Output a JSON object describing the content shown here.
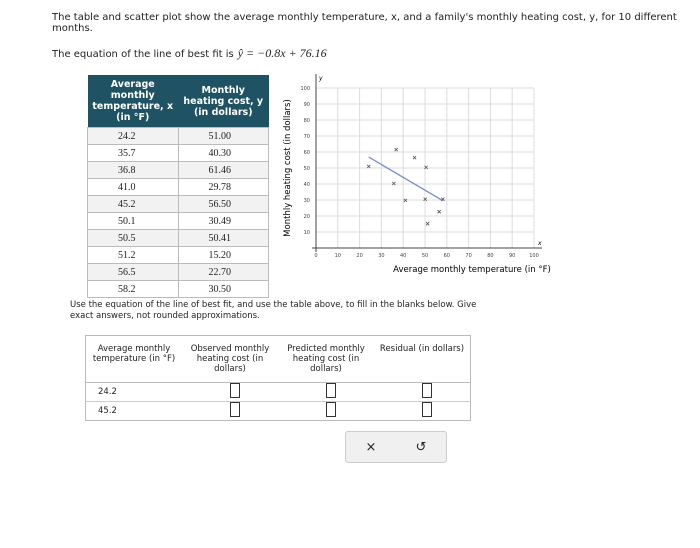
{
  "intro": "The table and scatter plot show the average monthly temperature, x, and a family's monthly heating cost, y, for 10 different months.",
  "equation_text": "The equation of the line of best fit is",
  "equation": "ŷ = −0.8x + 76.16",
  "data_table": {
    "headers": [
      "Average monthly temperature, x (in °F)",
      "Monthly heating cost, y (in dollars)"
    ],
    "rows": [
      [
        "24.2",
        "51.00"
      ],
      [
        "35.7",
        "40.30"
      ],
      [
        "36.8",
        "61.46"
      ],
      [
        "41.0",
        "29.78"
      ],
      [
        "45.2",
        "56.50"
      ],
      [
        "50.1",
        "30.49"
      ],
      [
        "50.5",
        "50.41"
      ],
      [
        "51.2",
        "15.20"
      ],
      [
        "56.5",
        "22.70"
      ],
      [
        "58.2",
        "30.50"
      ]
    ]
  },
  "scatter": {
    "x_label": "Average monthly temperature (in °F)",
    "y_label": "Monthly heating cost (in dollars)",
    "x_axis_arrow": "x",
    "y_axis_arrow": "y",
    "xlim": [
      0,
      100
    ],
    "ylim": [
      0,
      100
    ],
    "xticks": [
      0,
      10,
      20,
      30,
      40,
      50,
      60,
      70,
      80,
      90,
      100
    ],
    "yticks": [
      10,
      20,
      30,
      40,
      50,
      60,
      70,
      80,
      90,
      100
    ],
    "fit_line": {
      "slope": -0.8,
      "intercept": 76.16
    },
    "point_color": "#555555",
    "line_color": "#7b8fc7",
    "grid": true
  },
  "instructions": "Use the equation of the line of best fit, and use the table above, to fill in the blanks below. Give exact answers, not rounded approximations.",
  "answer_table": {
    "headers": [
      "Average monthly temperature (in °F)",
      "Observed monthly heating cost (in dollars)",
      "Predicted monthly heating cost (in dollars)",
      "Residual (in dollars)"
    ],
    "rows": [
      [
        "24.2"
      ],
      [
        "45.2"
      ]
    ]
  },
  "buttons": [
    "×",
    "↺"
  ]
}
